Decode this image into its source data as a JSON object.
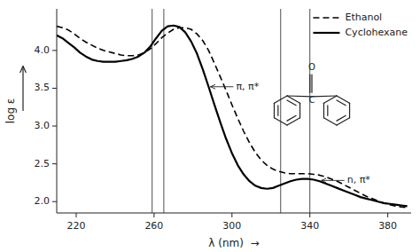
{
  "chart_data": {
    "type": "line",
    "xlabel": "λ (nm)  →",
    "ylabel": "log ε",
    "xlim": [
      210,
      392
    ],
    "ylim": [
      1.85,
      4.55
    ],
    "xticks": [
      220,
      260,
      300,
      340,
      380
    ],
    "yticks": [
      {
        "value": 2.0,
        "label": "2.0"
      },
      2.5,
      {
        "value": 3.0,
        "label": "3.0"
      },
      3.5,
      {
        "value": 4.0,
        "label": "4.0"
      }
    ],
    "grid": false,
    "legend": "upper right",
    "vlines": [
      259,
      265,
      325,
      340
    ],
    "x": [
      210,
      213,
      216,
      219,
      222,
      225,
      228,
      231,
      234,
      237,
      240,
      243,
      246,
      249,
      252,
      255,
      258,
      261,
      264,
      267,
      270,
      273,
      276,
      279,
      282,
      285,
      288,
      291,
      294,
      297,
      300,
      303,
      306,
      309,
      312,
      315,
      318,
      321,
      324,
      327,
      330,
      333,
      336,
      339,
      342,
      345,
      348,
      351,
      354,
      357,
      360,
      363,
      366,
      369,
      372,
      375,
      378,
      381,
      384,
      387,
      390
    ],
    "series": [
      {
        "name": "Ethanol",
        "color": "#000000",
        "line_style": "dashed",
        "values": [
          4.32,
          4.3,
          4.27,
          4.22,
          4.16,
          4.11,
          4.07,
          4.03,
          4.0,
          3.98,
          3.96,
          3.94,
          3.93,
          3.93,
          3.94,
          3.97,
          4.02,
          4.09,
          4.17,
          4.23,
          4.28,
          4.3,
          4.3,
          4.28,
          4.22,
          4.13,
          4.0,
          3.83,
          3.65,
          3.47,
          3.28,
          3.1,
          2.93,
          2.78,
          2.65,
          2.55,
          2.48,
          2.43,
          2.4,
          2.38,
          2.37,
          2.37,
          2.37,
          2.37,
          2.36,
          2.35,
          2.33,
          2.3,
          2.27,
          2.23,
          2.19,
          2.15,
          2.11,
          2.07,
          2.04,
          2.01,
          1.98,
          1.96,
          1.94,
          1.93,
          1.92
        ]
      },
      {
        "name": "Cyclohexane",
        "color": "#000000",
        "line_style": "solid",
        "values": [
          4.2,
          4.16,
          4.1,
          4.04,
          3.97,
          3.92,
          3.88,
          3.86,
          3.85,
          3.85,
          3.85,
          3.86,
          3.87,
          3.89,
          3.92,
          3.97,
          4.05,
          4.16,
          4.26,
          4.32,
          4.33,
          4.31,
          4.24,
          4.12,
          3.96,
          3.75,
          3.52,
          3.28,
          3.05,
          2.83,
          2.64,
          2.48,
          2.36,
          2.27,
          2.21,
          2.18,
          2.17,
          2.18,
          2.21,
          2.24,
          2.27,
          2.29,
          2.3,
          2.3,
          2.29,
          2.27,
          2.24,
          2.21,
          2.18,
          2.15,
          2.12,
          2.09,
          2.06,
          2.04,
          2.02,
          2.0,
          1.98,
          1.97,
          1.96,
          1.95,
          1.94
        ]
      }
    ],
    "annotations": [
      {
        "text": "π, π*",
        "x": 288,
        "y": 3.52
      },
      {
        "text": "n, π*",
        "x": 345,
        "y": 2.28
      }
    ],
    "structure_labels": [
      "O",
      "C"
    ]
  }
}
